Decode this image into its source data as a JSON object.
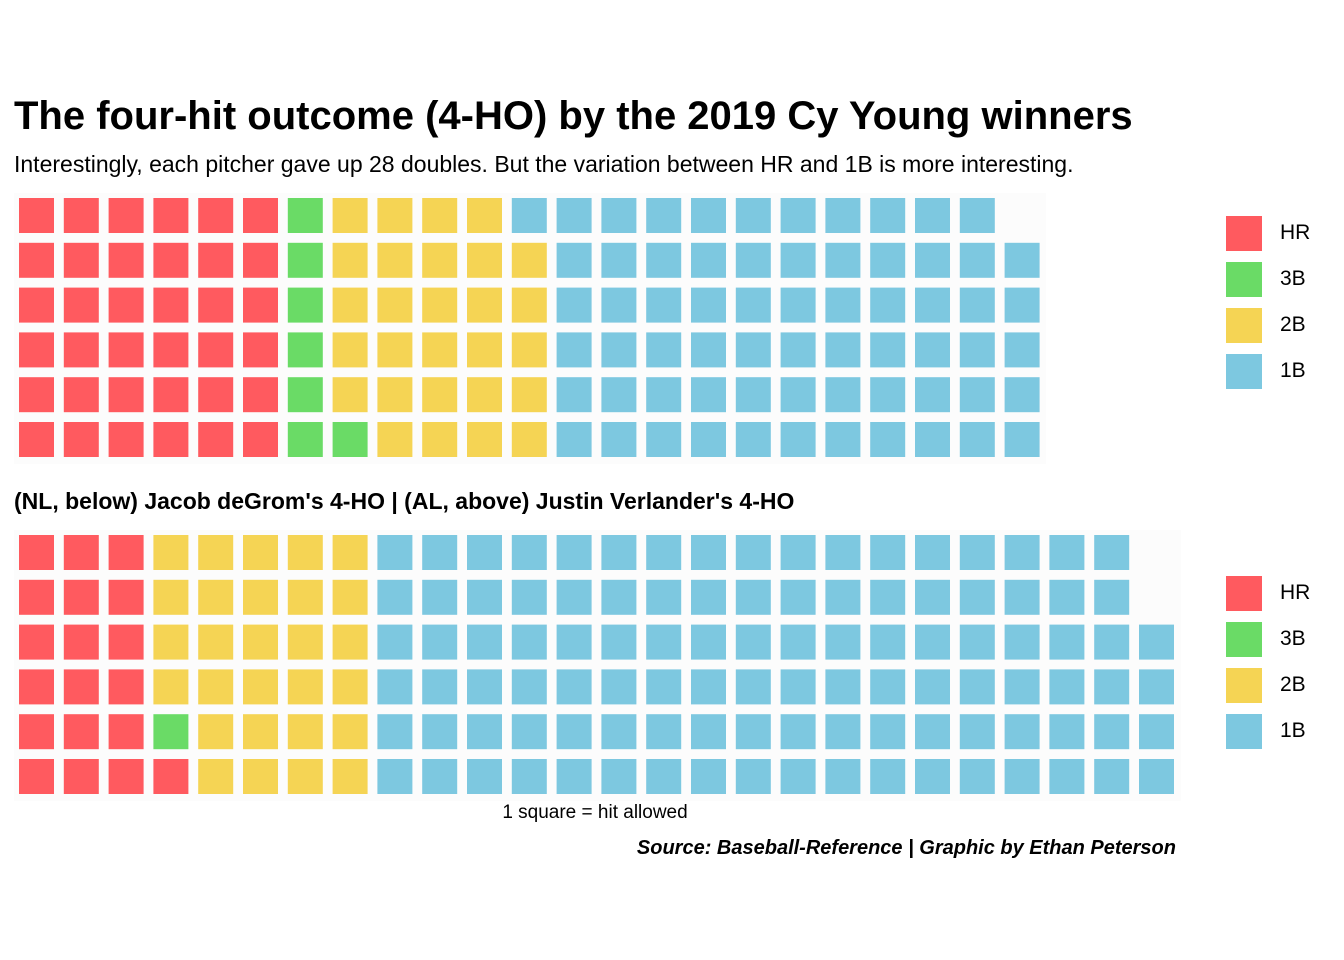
{
  "title": "The four-hit outcome (4-HO) by the 2019 Cy Young winners",
  "subtitle": "Interestingly, each pitcher gave up 28 doubles. But the variation between HR and 1B is more interesting.",
  "panel_title": "(NL, below) Jacob deGrom's 4-HO | (AL, above) Justin Verlander's 4-HO",
  "xlabel": "1 square = hit allowed",
  "caption": "Source: Baseball-Reference | Graphic by Ethan Peterson",
  "colors": {
    "HR": "#FF5A5F",
    "3B": "#6ADB66",
    "2B": "#F5D454",
    "1B": "#7DC8E0"
  },
  "legend": [
    {
      "key": "HR",
      "label": "HR"
    },
    {
      "key": "3B",
      "label": "3B"
    },
    {
      "key": "2B",
      "label": "2B"
    },
    {
      "key": "1B",
      "label": "1B"
    }
  ],
  "chart_data": [
    {
      "type": "waffle",
      "name": "Justin Verlander",
      "rows": 6,
      "categories": [
        "HR",
        "3B",
        "2B",
        "1B"
      ],
      "values": [
        36,
        7,
        28,
        66
      ]
    },
    {
      "type": "waffle",
      "name": "Jacob deGrom",
      "rows": 6,
      "categories": [
        "HR",
        "3B",
        "2B",
        "1B"
      ],
      "values": [
        19,
        1,
        28,
        106
      ]
    }
  ]
}
